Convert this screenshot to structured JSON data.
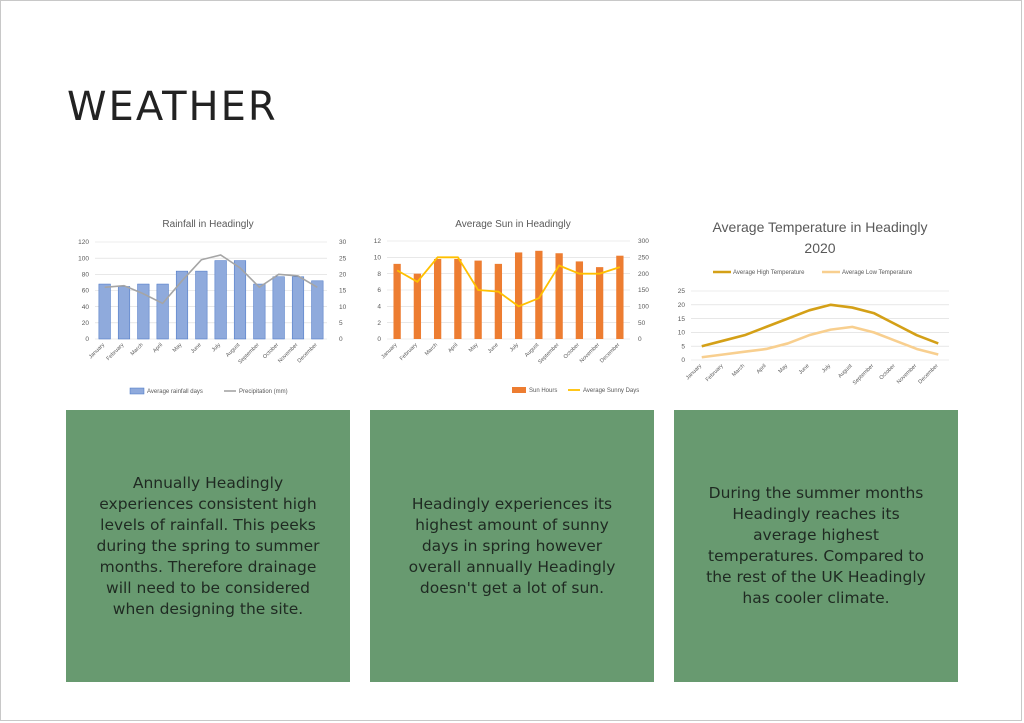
{
  "page": {
    "title": "WEATHER"
  },
  "colors": {
    "card_bg": "#689a70",
    "rain_bar": "#8faadc",
    "precip_line": "#a5a5a5",
    "sun_bar": "#ed7d31",
    "sunny_line": "#ffc000",
    "temp_high": "#d4a017",
    "temp_low": "#f8cf8f"
  },
  "cards": [
    {
      "text": "Annually Headingly experiences consistent high levels of rainfall. This peeks during the spring to summer months. Therefore drainage will need to be considered when designing the site."
    },
    {
      "text": "Headingly experiences its highest amount of sunny days in spring however overall annually Headingly doesn't get a lot of sun."
    },
    {
      "text": "During the summer months Headingly reaches its average highest temperatures. Compared to the rest of the UK Headingly has cooler climate."
    }
  ],
  "chart_data": [
    {
      "type": "bar",
      "title": "Rainfall in Headingly",
      "categories": [
        "January",
        "February",
        "March",
        "April",
        "May",
        "June",
        "July",
        "August",
        "September",
        "October",
        "November",
        "December"
      ],
      "series": [
        {
          "name": "Average rainfall days",
          "type": "bar",
          "axis": "left",
          "values": [
            68,
            65,
            68,
            68,
            84,
            84,
            97,
            97,
            68,
            77,
            77,
            72
          ]
        },
        {
          "name": "Precipitation (mm)",
          "type": "line",
          "axis": "right",
          "values": [
            16,
            16.5,
            14,
            11,
            18,
            24.5,
            26,
            22,
            16,
            20,
            19.5,
            16
          ]
        }
      ],
      "y_left": {
        "min": 0,
        "max": 120,
        "step": 20,
        "ticks": [
          "0",
          "20",
          "40",
          "60",
          "80",
          "100",
          "120"
        ]
      },
      "y_right": {
        "min": 0,
        "max": 30,
        "step": 5,
        "ticks": [
          "0",
          "5",
          "10",
          "15",
          "20",
          "25",
          "30"
        ]
      },
      "legend": "bottom",
      "grid": true
    },
    {
      "type": "bar",
      "title": "Average Sun in Headingly",
      "categories": [
        "January",
        "February",
        "March",
        "April",
        "May",
        "June",
        "July",
        "August",
        "September",
        "October",
        "November",
        "December"
      ],
      "series": [
        {
          "name": "Sun Hours",
          "type": "bar",
          "axis": "left",
          "values": [
            9.2,
            8.0,
            9.8,
            9.8,
            9.6,
            9.2,
            10.6,
            10.8,
            10.5,
            9.5,
            8.8,
            10.2
          ]
        },
        {
          "name": "Average Sunny Days",
          "type": "line",
          "axis": "right",
          "values": [
            210,
            175,
            250,
            250,
            150,
            145,
            100,
            125,
            225,
            200,
            200,
            220
          ]
        }
      ],
      "y_left": {
        "min": 0,
        "max": 12,
        "step": 2,
        "ticks": [
          "0",
          "2",
          "4",
          "6",
          "8",
          "10",
          "12"
        ]
      },
      "y_right": {
        "min": 0,
        "max": 300,
        "step": 50,
        "ticks": [
          "0",
          "50",
          "100",
          "150",
          "200",
          "250",
          "300"
        ]
      },
      "legend": "bottom-right",
      "grid": true
    },
    {
      "type": "line",
      "title": "Average Temperature in Headingly 2020",
      "categories": [
        "January",
        "February",
        "March",
        "April",
        "May",
        "June",
        "July",
        "August",
        "September",
        "October",
        "November",
        "December"
      ],
      "series": [
        {
          "name": "Average High Temperature",
          "values": [
            5,
            7,
            9,
            12,
            15,
            18,
            20,
            19,
            17,
            13,
            9,
            6
          ]
        },
        {
          "name": "Average Low Temperature",
          "values": [
            1,
            2,
            3,
            4,
            6,
            9,
            11,
            12,
            10,
            7,
            4,
            2
          ]
        }
      ],
      "y_left": {
        "min": 0,
        "max": 25,
        "step": 5,
        "ticks": [
          "0",
          "5",
          "10",
          "15",
          "20",
          "25"
        ]
      },
      "legend": "top",
      "grid": true
    }
  ]
}
